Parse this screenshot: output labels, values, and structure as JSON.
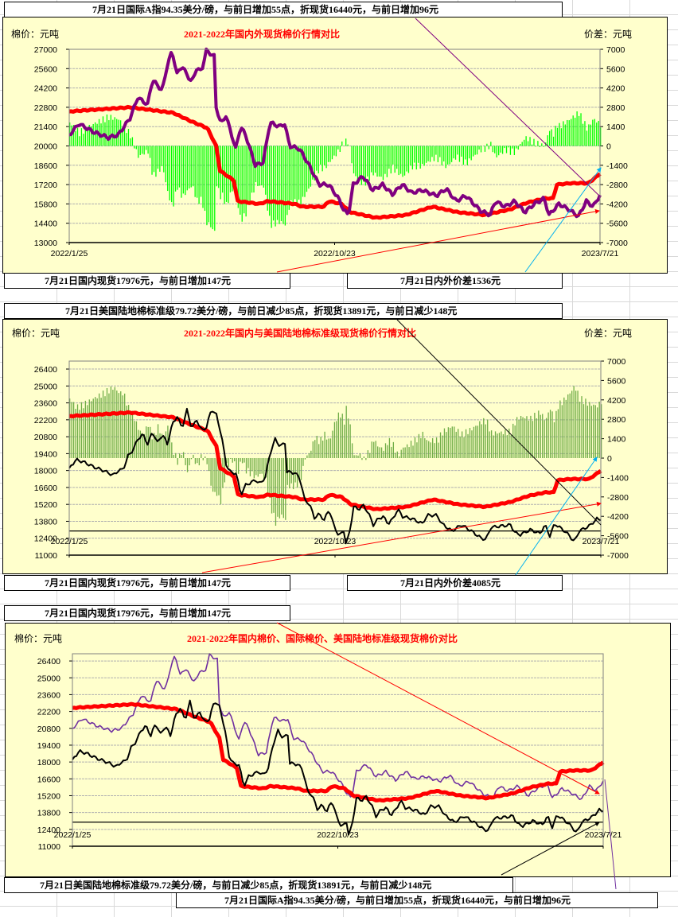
{
  "captions": {
    "intl_top": "7月21日国际A指94.35美分/磅，与前日增加55点，折现货16440元，与前日增加96元",
    "domestic_1": "7月21日国内现货17976元，与前日增加147元",
    "spread_1": "7月21日内外价差1536元",
    "us_top": "7月21日美国陆地棉标准级79.72美分/磅，与前日减少85点，折现货13891元，与前日减少148元",
    "domestic_2": "7月21日国内现货17976元，与前日增加147元",
    "spread_2": "7月21日内外价差4085元",
    "domestic_3": "7月21日国内现货17976元，与前日增加147元",
    "us_bottom": "7月21日美国陆地棉标准级79.72美分/磅，与前日减少85点，折现货13891元，与前日减少148元",
    "intl_bottom": "7月21日国际A指94.35美分/磅，与前日增加55点，折现货16440元，与前日增加96元"
  },
  "chart_data": {
    "type": "line",
    "x_unit": "days since 2022/1/25",
    "x_tick_labels": [
      {
        "day": 0,
        "label": "2022/1/25"
      },
      {
        "day": 271,
        "label": "2022/10/23"
      },
      {
        "day": 542,
        "label": "2023/7/21"
      }
    ],
    "colors": {
      "domestic": "#ff0000",
      "international": "#800080",
      "international_thin": "#7030a0",
      "us": "#000000",
      "spread_green": "#00ff00",
      "spread_olive": "#70ad47"
    },
    "series": {
      "domestic": [
        [
          0,
          22500
        ],
        [
          62,
          22800
        ],
        [
          106,
          22400
        ],
        [
          124,
          21800
        ],
        [
          141,
          21300
        ],
        [
          150,
          20000
        ],
        [
          154,
          18200
        ],
        [
          168,
          17500
        ],
        [
          172,
          16000
        ],
        [
          194,
          15800
        ],
        [
          203,
          16000
        ],
        [
          230,
          15800
        ],
        [
          238,
          15600
        ],
        [
          260,
          15600
        ],
        [
          265,
          16000
        ],
        [
          278,
          15800
        ],
        [
          287,
          15200
        ],
        [
          313,
          14800
        ],
        [
          344,
          15000
        ],
        [
          371,
          15600
        ],
        [
          397,
          15200
        ],
        [
          424,
          15000
        ],
        [
          450,
          15400
        ],
        [
          468,
          15900
        ],
        [
          486,
          16200
        ],
        [
          494,
          16200
        ],
        [
          498,
          17200
        ],
        [
          512,
          17300
        ],
        [
          530,
          17300
        ],
        [
          542,
          17976
        ]
      ],
      "international": [
        [
          0,
          20800
        ],
        [
          10,
          21600
        ],
        [
          25,
          21000
        ],
        [
          40,
          20600
        ],
        [
          50,
          20800
        ],
        [
          62,
          22000
        ],
        [
          70,
          23500
        ],
        [
          80,
          23000
        ],
        [
          85,
          24800
        ],
        [
          95,
          24000
        ],
        [
          100,
          25800
        ],
        [
          105,
          26900
        ],
        [
          110,
          25200
        ],
        [
          115,
          25800
        ],
        [
          125,
          24600
        ],
        [
          130,
          25600
        ],
        [
          135,
          25400
        ],
        [
          140,
          26900
        ],
        [
          148,
          26500
        ],
        [
          150,
          22800
        ],
        [
          155,
          21600
        ],
        [
          160,
          22200
        ],
        [
          170,
          19800
        ],
        [
          175,
          21400
        ],
        [
          180,
          20800
        ],
        [
          190,
          18600
        ],
        [
          198,
          18800
        ],
        [
          205,
          21700
        ],
        [
          215,
          21400
        ],
        [
          220,
          21600
        ],
        [
          225,
          20000
        ],
        [
          235,
          19800
        ],
        [
          245,
          18600
        ],
        [
          255,
          17200
        ],
        [
          265,
          17200
        ],
        [
          275,
          16200
        ],
        [
          280,
          15400
        ],
        [
          285,
          15000
        ],
        [
          290,
          17200
        ],
        [
          300,
          17800
        ],
        [
          310,
          16800
        ],
        [
          320,
          17200
        ],
        [
          330,
          16500
        ],
        [
          340,
          17200
        ],
        [
          350,
          16600
        ],
        [
          360,
          16800
        ],
        [
          375,
          16400
        ],
        [
          385,
          16900
        ],
        [
          395,
          16000
        ],
        [
          405,
          16400
        ],
        [
          420,
          15300
        ],
        [
          430,
          15000
        ],
        [
          435,
          16000
        ],
        [
          445,
          15600
        ],
        [
          455,
          16000
        ],
        [
          465,
          15200
        ],
        [
          475,
          15800
        ],
        [
          485,
          16200
        ],
        [
          490,
          15000
        ],
        [
          500,
          15800
        ],
        [
          510,
          15400
        ],
        [
          520,
          14900
        ],
        [
          528,
          16000
        ],
        [
          535,
          15600
        ],
        [
          542,
          16440
        ]
      ],
      "us": [
        [
          0,
          18200
        ],
        [
          7,
          18900
        ],
        [
          15,
          18700
        ],
        [
          25,
          18300
        ],
        [
          35,
          18000
        ],
        [
          40,
          17800
        ],
        [
          45,
          17600
        ],
        [
          50,
          18000
        ],
        [
          55,
          18100
        ],
        [
          60,
          19200
        ],
        [
          65,
          19700
        ],
        [
          70,
          20600
        ],
        [
          75,
          21000
        ],
        [
          80,
          20200
        ],
        [
          85,
          21200
        ],
        [
          90,
          20300
        ],
        [
          95,
          21000
        ],
        [
          100,
          20200
        ],
        [
          105,
          21800
        ],
        [
          110,
          22500
        ],
        [
          115,
          21500
        ],
        [
          120,
          23000
        ],
        [
          125,
          21500
        ],
        [
          130,
          22200
        ],
        [
          135,
          21300
        ],
        [
          140,
          21600
        ],
        [
          145,
          23100
        ],
        [
          150,
          22600
        ],
        [
          155,
          21000
        ],
        [
          160,
          18500
        ],
        [
          165,
          17800
        ],
        [
          170,
          17800
        ],
        [
          175,
          16000
        ],
        [
          180,
          16800
        ],
        [
          190,
          17200
        ],
        [
          195,
          16900
        ],
        [
          200,
          17500
        ],
        [
          205,
          19500
        ],
        [
          210,
          20600
        ],
        [
          215,
          20000
        ],
        [
          220,
          20300
        ],
        [
          222,
          17900
        ],
        [
          230,
          17800
        ],
        [
          235,
          17400
        ],
        [
          240,
          15600
        ],
        [
          245,
          15200
        ],
        [
          250,
          14100
        ],
        [
          255,
          14400
        ],
        [
          260,
          13900
        ],
        [
          265,
          14800
        ],
        [
          270,
          13400
        ],
        [
          275,
          12600
        ],
        [
          280,
          13000
        ],
        [
          282,
          12000
        ],
        [
          285,
          12500
        ],
        [
          290,
          15000
        ],
        [
          295,
          14800
        ],
        [
          300,
          15100
        ],
        [
          305,
          14500
        ],
        [
          310,
          13500
        ],
        [
          315,
          14000
        ],
        [
          320,
          14200
        ],
        [
          325,
          13600
        ],
        [
          330,
          14000
        ],
        [
          335,
          14800
        ],
        [
          340,
          14200
        ],
        [
          350,
          14000
        ],
        [
          360,
          13600
        ],
        [
          365,
          14300
        ],
        [
          375,
          14300
        ],
        [
          380,
          13600
        ],
        [
          390,
          13000
        ],
        [
          400,
          13500
        ],
        [
          410,
          13000
        ],
        [
          420,
          12400
        ],
        [
          425,
          12300
        ],
        [
          430,
          13300
        ],
        [
          440,
          13400
        ],
        [
          450,
          13500
        ],
        [
          455,
          12800
        ],
        [
          460,
          12700
        ],
        [
          470,
          13100
        ],
        [
          480,
          12800
        ],
        [
          485,
          13500
        ],
        [
          490,
          12600
        ],
        [
          495,
          13600
        ],
        [
          505,
          13000
        ],
        [
          510,
          12600
        ],
        [
          515,
          12100
        ],
        [
          520,
          13000
        ],
        [
          530,
          13400
        ],
        [
          538,
          14000
        ],
        [
          542,
          13891
        ]
      ]
    },
    "charts": [
      {
        "title": "2021-2022年国内外现货棉价行情对比",
        "left_unit": "棉价：元吨",
        "right_unit": "价差：元吨",
        "lines": [
          "domestic",
          "international"
        ],
        "bars": [
          "domestic",
          "international"
        ],
        "ylim": [
          13000,
          27000
        ],
        "yticks_step": 1400,
        "y2lim": [
          -7000,
          7000
        ],
        "y2ticks_step": 1400
      },
      {
        "title": "2021-2022年国内与美国陆地棉标准级现货棉价行情对比",
        "left_unit": "棉价：元吨",
        "right_unit": "价差：元吨",
        "lines": [
          "domestic",
          "us"
        ],
        "bars": [
          "domestic",
          "us"
        ],
        "ylim": [
          11000,
          27060
        ],
        "yticks": [
          11000,
          12400,
          13800,
          15200,
          16600,
          18000,
          19400,
          20800,
          22200,
          23600,
          25000,
          26400
        ],
        "y2lim": [
          -7000,
          7000
        ],
        "y2ticks_step": 1400,
        "hline": 13000
      },
      {
        "title": "2021-2022年国内棉价、国际棉价、美国陆地标准级现货棉价对比",
        "left_unit": "棉价：元吨",
        "lines": [
          "international",
          "domestic",
          "us"
        ],
        "ylim": [
          11000,
          27000
        ],
        "yticks": [
          11000,
          12400,
          13800,
          15200,
          16600,
          18000,
          19400,
          20800,
          22200,
          23600,
          25000,
          26400
        ],
        "hline": 13000
      }
    ]
  }
}
